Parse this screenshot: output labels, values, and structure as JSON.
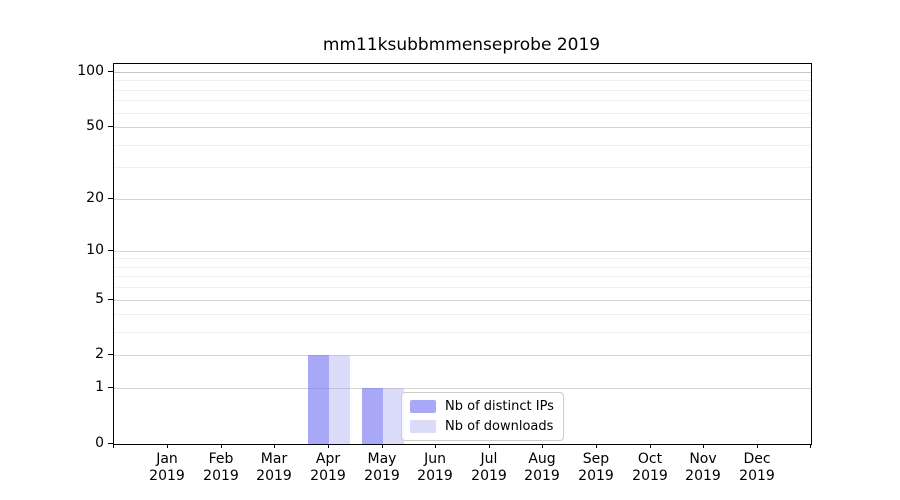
{
  "chart_data": {
    "type": "bar",
    "title": "mm11ksubbmmenseprobe 2019",
    "categories": [
      "Jan 2019",
      "Feb 2019",
      "Mar 2019",
      "Apr 2019",
      "May 2019",
      "Jun 2019",
      "Jul 2019",
      "Aug 2019",
      "Sep 2019",
      "Oct 2019",
      "Nov 2019",
      "Dec 2019"
    ],
    "series": [
      {
        "name": "Nb of distinct IPs",
        "values": [
          0,
          0,
          0,
          2,
          1,
          0,
          0,
          0,
          0,
          0,
          0,
          0
        ],
        "fill": "rgba(110,110,240,0.6)",
        "swatch": "#a8a8f6"
      },
      {
        "name": "Nb of downloads",
        "values": [
          0,
          0,
          0,
          2,
          1,
          0,
          0,
          0,
          0,
          0,
          0,
          0
        ],
        "fill": "rgba(165,165,242,0.4)",
        "swatch": "#dbdbfa"
      }
    ],
    "xlabel": "",
    "ylabel": "",
    "yscale": "log1p",
    "ylim": [
      0,
      110.6
    ],
    "yticks": [
      0,
      1,
      2,
      5,
      10,
      20,
      50,
      100
    ],
    "yticks_minor": [
      3,
      4,
      6,
      7,
      8,
      9,
      30,
      40,
      60,
      70,
      80,
      90
    ],
    "grid": {
      "orientation": "horizontal",
      "major_color": "#d4d4d4",
      "minor_color": "#f0f0f0",
      "top_major_color": "#c3c3c3"
    },
    "legend_position": "inside lower-center-right",
    "bar_group": "side-by-side, bars only in Apr 2019 (2,2) and May 2019 (1,1)"
  }
}
